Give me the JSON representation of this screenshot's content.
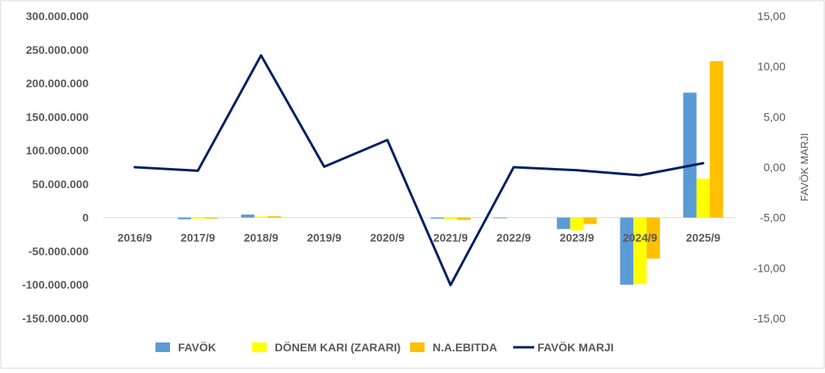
{
  "chart_data": {
    "type": "bar",
    "categories": [
      "2016/9",
      "2017/9",
      "2018/9",
      "2019/9",
      "2020/9",
      "2021/9",
      "2022/9",
      "2023/9",
      "2024/9",
      "2025/9"
    ],
    "series": [
      {
        "name": "FAVÖK",
        "type": "bar",
        "axis": "left",
        "color": "#5b9bd5",
        "values": [
          0,
          -2500000,
          4500000,
          0,
          0,
          -1500000,
          -1000000,
          -17000000,
          -100000000,
          186000000
        ]
      },
      {
        "name": "DÖNEM KARI (ZARARI)",
        "type": "bar",
        "axis": "left",
        "color": "#ffff00",
        "values": [
          0,
          -1500000,
          1500000,
          0,
          0,
          -2500000,
          0,
          -19000000,
          -99000000,
          58000000
        ]
      },
      {
        "name": "N.A.EBITDA",
        "type": "bar",
        "axis": "left",
        "color": "#ffc000",
        "values": [
          0,
          -1500000,
          2000000,
          0,
          0,
          -3500000,
          0,
          -9500000,
          -61000000,
          233000000
        ]
      },
      {
        "name": "FAVÖK MARJI",
        "type": "line",
        "axis": "right",
        "color": "#002060",
        "values": [
          0.0,
          -0.35,
          11.1,
          0.05,
          2.7,
          -11.7,
          0.0,
          -0.3,
          -0.8,
          0.4
        ]
      }
    ],
    "left_axis": {
      "min": -150000000,
      "max": 300000000,
      "step": 50000000,
      "tick_labels": [
        "-150.000.000",
        "-100.000.000",
        "-50.000.000",
        "0",
        "50.000.000",
        "100.000.000",
        "150.000.000",
        "200.000.000",
        "250.000.000",
        "300.000.000"
      ]
    },
    "right_axis": {
      "min": -15,
      "max": 15,
      "step": 5,
      "tick_labels": [
        "-15,00",
        "-10,00",
        "-5,00",
        "0,00",
        "5,00",
        "10,00",
        "15,00"
      ],
      "label": "FAVÖK MARJI"
    },
    "grid": false,
    "legend_position": "bottom"
  }
}
